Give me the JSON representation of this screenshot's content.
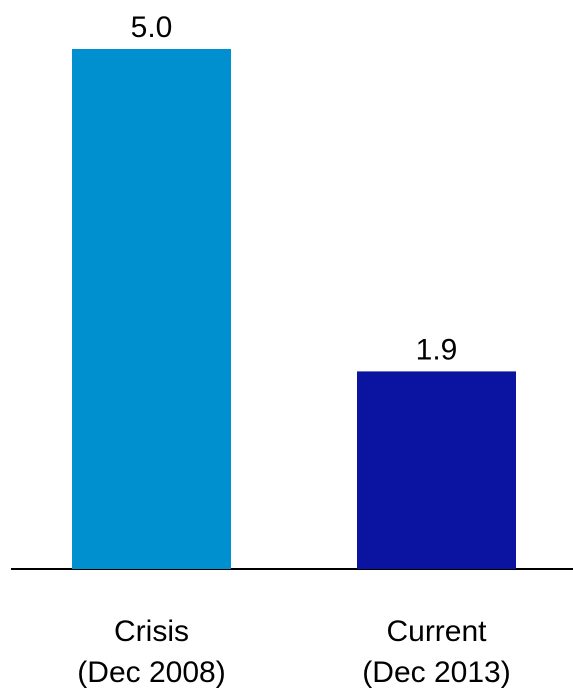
{
  "chart_data": {
    "type": "bar",
    "categories": [
      [
        "Crisis",
        "(Dec 2008)"
      ],
      [
        "Current",
        "(Dec 2013)"
      ]
    ],
    "values": [
      5.0,
      1.9
    ],
    "value_labels": [
      "5.0",
      "1.9"
    ],
    "colors": [
      "#0090d0",
      "#0a14a0"
    ],
    "title": "",
    "xlabel": "",
    "ylabel": "",
    "ylim": [
      0,
      5.0
    ],
    "grid": false,
    "legend": "none"
  }
}
